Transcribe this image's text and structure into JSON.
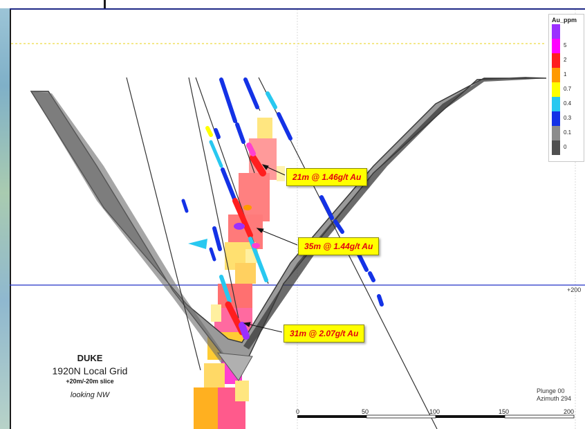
{
  "legend": {
    "title": "Au_ppm",
    "entries": [
      {
        "label": "",
        "color": "#9b30ff"
      },
      {
        "label": "5",
        "color": "#ff00ff"
      },
      {
        "label": "2",
        "color": "#ff1e1e"
      },
      {
        "label": "1",
        "color": "#ff9900"
      },
      {
        "label": "0.7",
        "color": "#ffff00"
      },
      {
        "label": "0.4",
        "color": "#28c8f0"
      },
      {
        "label": "0.3",
        "color": "#1432e6"
      },
      {
        "label": "0.1",
        "color": "#8c8c8c"
      },
      {
        "label": "0",
        "color": "#505050"
      }
    ]
  },
  "callouts": [
    {
      "text": "21m @ 1.46g/t Au"
    },
    {
      "text": "35m @ 1.44g/t Au"
    },
    {
      "text": "31m @ 2.07g/t Au"
    }
  ],
  "title_block": {
    "name": "DUKE",
    "grid": "1920N Local Grid",
    "slice": "+20m/-20m slice",
    "looking": "looking NW"
  },
  "orientation": {
    "plunge": "Plunge 00",
    "azimuth": "Azimuth 294"
  },
  "elevation_label": "+200",
  "scale_bar": {
    "labels": [
      "0",
      "50",
      "100",
      "150",
      "200"
    ]
  },
  "colors": {
    "section_line": "#2030c8",
    "dashed_line": "#f0e060",
    "pit_fill": "#9a9a9a",
    "pit_edge": "#3a3a3a"
  }
}
